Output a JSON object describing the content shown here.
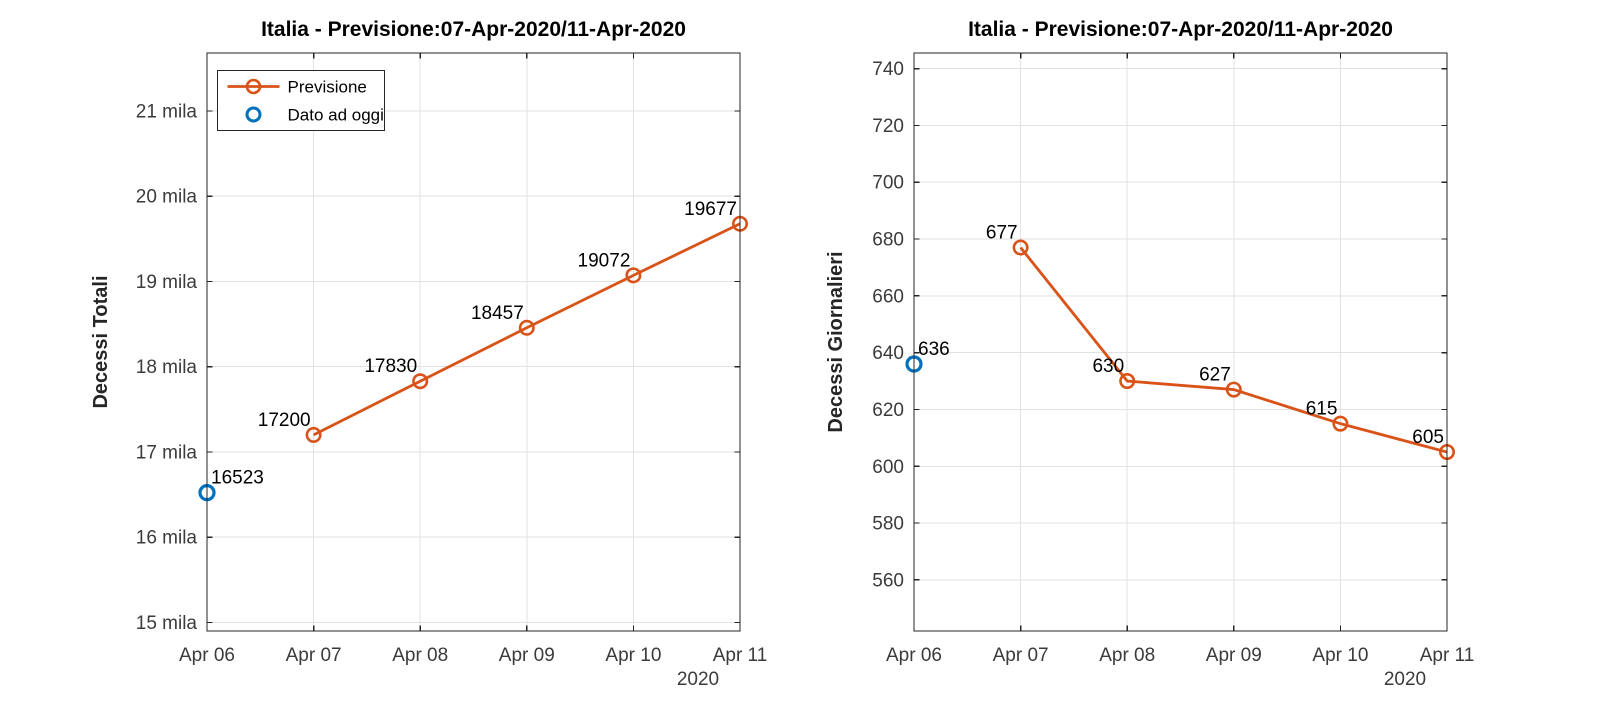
{
  "figure": {
    "background": "#FFFFFF",
    "colors": {
      "previsione_orange": "#D95319",
      "dato_blue": "#0072BD",
      "axis": "#262626",
      "tick_text": "#3B3B3B",
      "grid": "#E2E2E2",
      "label_text": "#000000"
    }
  },
  "chart_data": [
    {
      "id": "decessi-totali",
      "type": "line",
      "title": "Italia - Previsione:07-Apr-2020/11-Apr-2020",
      "ylabel": "Decessi Totali",
      "xlabel": "",
      "x_tick_labels": [
        "Apr 06",
        "Apr 07",
        "Apr 08",
        "Apr 09",
        "Apr 10",
        "Apr 11"
      ],
      "x_year_label": "2020",
      "grid": true,
      "ylim": [
        14900,
        21680
      ],
      "yticks": [
        {
          "value": 15000,
          "label": "15 mila"
        },
        {
          "value": 16000,
          "label": "16 mila"
        },
        {
          "value": 17000,
          "label": "17 mila"
        },
        {
          "value": 18000,
          "label": "18 mila"
        },
        {
          "value": 19000,
          "label": "19 mila"
        },
        {
          "value": 20000,
          "label": "20 mila"
        },
        {
          "value": 21000,
          "label": "21 mila"
        }
      ],
      "legend": {
        "position": "top-left",
        "entries": [
          {
            "label": "Previsione",
            "swatch": "line-circle",
            "color": "#D95319"
          },
          {
            "label": "Dato ad oggi",
            "swatch": "circle",
            "color": "#0072BD"
          }
        ]
      },
      "series": [
        {
          "name": "Previsione",
          "color": "#D95319",
          "line": true,
          "points": [
            {
              "x": 1,
              "y": 17200,
              "label": "17200"
            },
            {
              "x": 2,
              "y": 17830,
              "label": "17830"
            },
            {
              "x": 3,
              "y": 18457,
              "label": "18457"
            },
            {
              "x": 4,
              "y": 19072,
              "label": "19072"
            },
            {
              "x": 5,
              "y": 19677,
              "label": "19677"
            }
          ]
        },
        {
          "name": "Dato ad oggi",
          "color": "#0072BD",
          "line": false,
          "points": [
            {
              "x": 0,
              "y": 16523,
              "label": "16523"
            }
          ]
        }
      ]
    },
    {
      "id": "decessi-giornalieri",
      "type": "line",
      "title": "Italia - Previsione:07-Apr-2020/11-Apr-2020",
      "ylabel": "Decessi Giornalieri",
      "xlabel": "",
      "x_tick_labels": [
        "Apr 06",
        "Apr 07",
        "Apr 08",
        "Apr 09",
        "Apr 10",
        "Apr 11"
      ],
      "x_year_label": "2020",
      "grid": true,
      "ylim": [
        542,
        745.5
      ],
      "yticks": [
        {
          "value": 560,
          "label": "560"
        },
        {
          "value": 580,
          "label": "580"
        },
        {
          "value": 600,
          "label": "600"
        },
        {
          "value": 620,
          "label": "620"
        },
        {
          "value": 640,
          "label": "640"
        },
        {
          "value": 660,
          "label": "660"
        },
        {
          "value": 680,
          "label": "680"
        },
        {
          "value": 700,
          "label": "700"
        },
        {
          "value": 720,
          "label": "720"
        },
        {
          "value": 740,
          "label": "740"
        }
      ],
      "legend": null,
      "series": [
        {
          "name": "Previsione",
          "color": "#D95319",
          "line": true,
          "points": [
            {
              "x": 1,
              "y": 677,
              "label": "677"
            },
            {
              "x": 2,
              "y": 630,
              "label": "630"
            },
            {
              "x": 3,
              "y": 627,
              "label": "627"
            },
            {
              "x": 4,
              "y": 615,
              "label": "615"
            },
            {
              "x": 5,
              "y": 605,
              "label": "605"
            }
          ]
        },
        {
          "name": "Dato ad oggi",
          "color": "#0072BD",
          "line": false,
          "points": [
            {
              "x": 0,
              "y": 636,
              "label": "636"
            }
          ]
        }
      ]
    }
  ]
}
